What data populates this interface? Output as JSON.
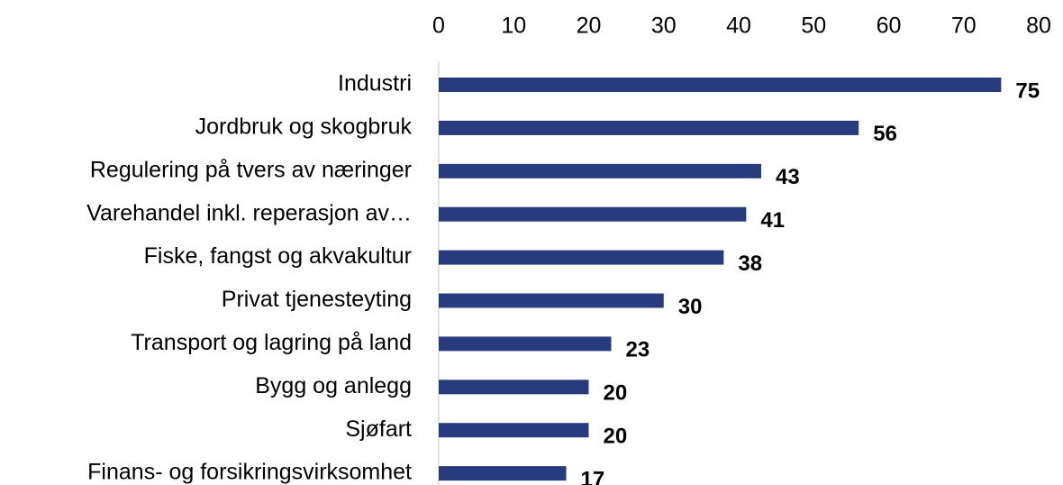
{
  "chart_data": {
    "type": "bar",
    "orientation": "horizontal",
    "categories": [
      "Industri",
      "Jordbruk og skogbruk",
      "Regulering på tvers av næringer",
      "Varehandel inkl. reperasjon av…",
      "Fiske, fangst og akvakultur",
      "Privat tjenesteyting",
      "Transport og lagring på land",
      "Bygg og anlegg",
      "Sjøfart",
      "Finans- og forsikringsvirksomhet"
    ],
    "values": [
      75,
      56,
      43,
      41,
      38,
      30,
      23,
      20,
      20,
      17
    ],
    "color": "#283b7c",
    "xlim": [
      0,
      80
    ],
    "xticks": [
      0,
      10,
      20,
      30,
      40,
      50,
      60,
      70,
      80
    ]
  }
}
